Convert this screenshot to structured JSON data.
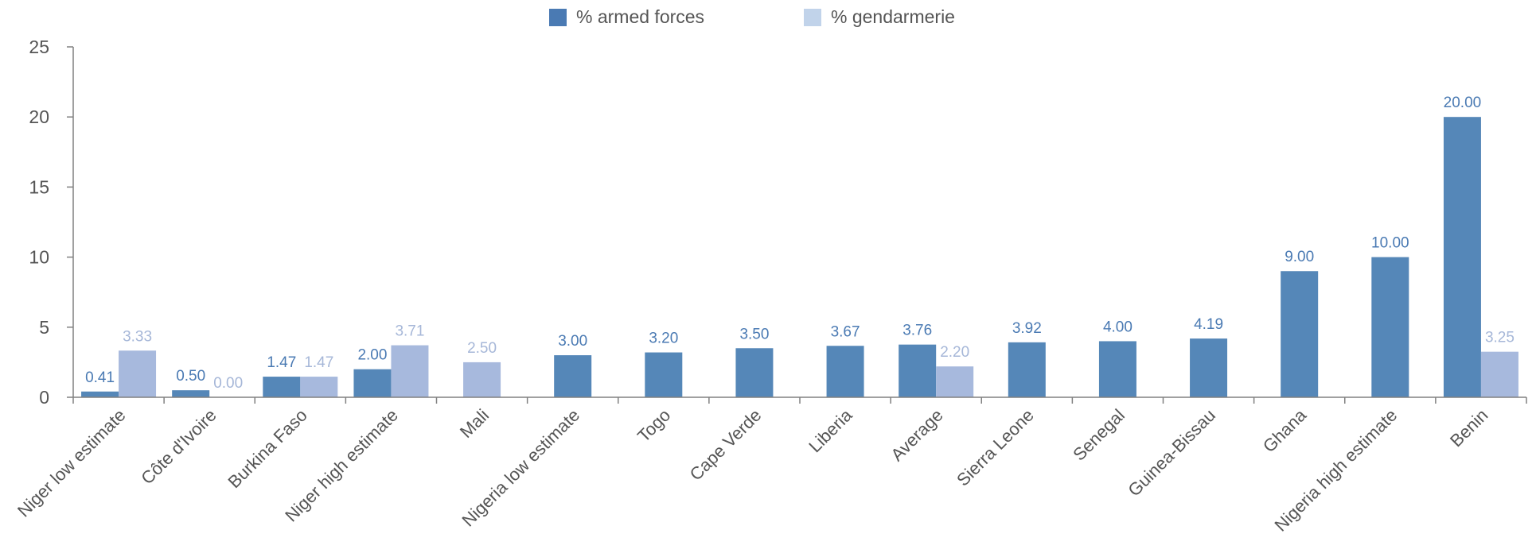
{
  "legend": {
    "armed_label": "% armed forces",
    "gendarmerie_label": "% gendarmerie"
  },
  "colors": {
    "armed": "#5587b8",
    "gendarmerie": "#a7b9dd",
    "armed_label": "#4a7ab3",
    "gendarmerie_label": "#a6b7d8",
    "axis": "#808080",
    "text": "#555555"
  },
  "chart_data": {
    "type": "bar",
    "title": "",
    "xlabel": "",
    "ylabel": "",
    "ylim": [
      0,
      25
    ],
    "yticks": [
      0,
      5,
      10,
      15,
      20,
      25
    ],
    "grid": false,
    "legend_position": "top-center",
    "categories": [
      "Niger low estimate",
      "Côte d'Ivoire",
      "Burkina Faso",
      "Niger high estimate",
      "Mali",
      "Nigeria low estimate",
      "Togo",
      "Cape Verde",
      "Liberia",
      "Average",
      "Sierra Leone",
      "Senegal",
      "Guinea-Bissau",
      "Ghana",
      "Nigeria high estimate",
      "Benin"
    ],
    "series": [
      {
        "name": "% armed forces",
        "values": [
          0.41,
          0.5,
          1.47,
          2.0,
          null,
          3.0,
          3.2,
          3.5,
          3.67,
          3.76,
          3.92,
          4.0,
          4.19,
          9.0,
          10.0,
          20.0
        ],
        "labels": [
          "0.41",
          "0.50",
          "1.47",
          "2.00",
          null,
          "3.00",
          "3.20",
          "3.50",
          "3.67",
          "3.76",
          "3.92",
          "4.00",
          "4.19",
          "9.00",
          "10.00",
          "20.00"
        ]
      },
      {
        "name": "% gendarmerie",
        "values": [
          3.33,
          0.0,
          1.47,
          3.71,
          2.5,
          null,
          null,
          null,
          null,
          2.2,
          null,
          null,
          null,
          null,
          null,
          3.25
        ],
        "labels": [
          "3.33",
          "0.00",
          "1.47",
          "3.71",
          "2.50",
          null,
          null,
          null,
          null,
          "2.20",
          null,
          null,
          null,
          null,
          null,
          "3.25"
        ]
      }
    ]
  }
}
